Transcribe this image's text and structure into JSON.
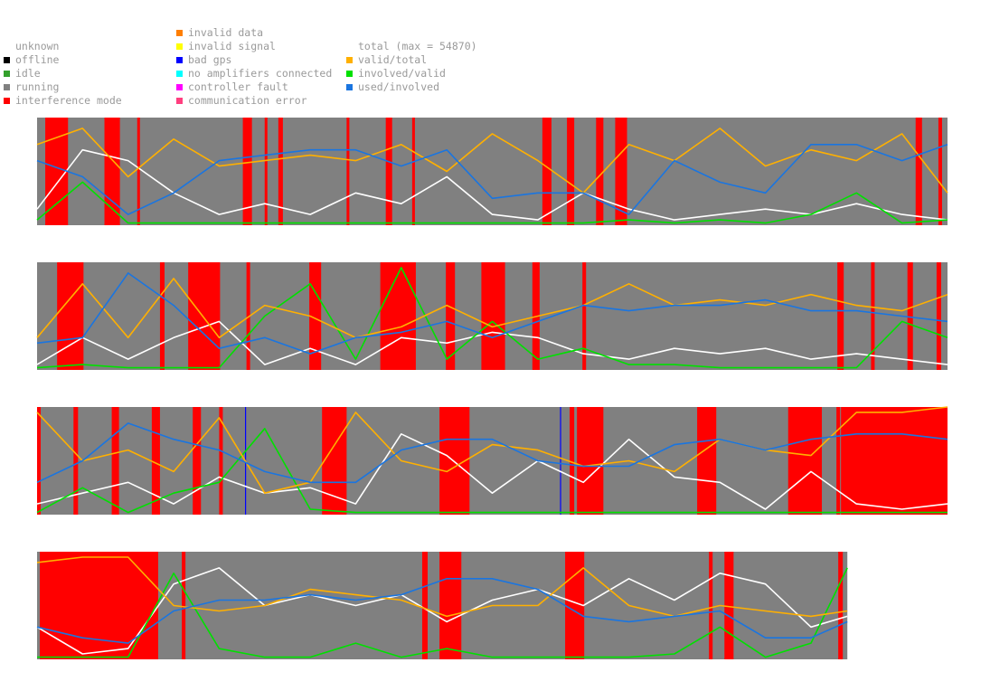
{
  "legend": {
    "status": [
      {
        "name": "unknown",
        "color": "#ffffff"
      },
      {
        "name": "offline",
        "color": "#000000"
      },
      {
        "name": "idle",
        "color": "#33a02c"
      },
      {
        "name": "running",
        "color": "#808080"
      },
      {
        "name": "interference mode",
        "color": "#ff0000"
      }
    ],
    "flags": [
      {
        "name": "invalid data",
        "color": "#ff7f00"
      },
      {
        "name": "invalid signal",
        "color": "#ffff00"
      },
      {
        "name": "bad gps",
        "color": "#0000ff"
      },
      {
        "name": "no amplifiers connected",
        "color": "#00ffff"
      },
      {
        "name": "controller fault",
        "color": "#ff00ff"
      },
      {
        "name": "communication error",
        "color": "#ff3f7f"
      }
    ],
    "series": [
      {
        "name": "total (max = 54870)",
        "color": "#ffffff"
      },
      {
        "name": "valid/total",
        "color": "#ffb000"
      },
      {
        "name": "involved/valid",
        "color": "#00e000"
      },
      {
        "name": "used/involved",
        "color": "#1a75e0"
      }
    ]
  },
  "chart_data": [
    {
      "type": "line",
      "xlim": [
        0,
        100
      ],
      "ylim": [
        0,
        1
      ],
      "x": [
        0,
        5,
        10,
        15,
        20,
        25,
        30,
        35,
        40,
        45,
        50,
        55,
        60,
        65,
        70,
        75,
        80,
        85,
        90,
        95,
        100
      ],
      "interference": [
        [
          0.9,
          3.4
        ],
        [
          7.4,
          9.1
        ],
        [
          11,
          11.3
        ],
        [
          22.6,
          23.6
        ],
        [
          25,
          25.3
        ],
        [
          26.5,
          27
        ],
        [
          34,
          34.3
        ],
        [
          38.3,
          39
        ],
        [
          41.2,
          41.5
        ],
        [
          55.5,
          56.5
        ],
        [
          58.2,
          59
        ],
        [
          61.4,
          62.2
        ],
        [
          63.5,
          64.8
        ],
        [
          96.5,
          97.2
        ],
        [
          99,
          99.4
        ]
      ],
      "bad_gps": [],
      "series": [
        {
          "color": "#ffffff",
          "values": [
            0.15,
            0.7,
            0.6,
            0.3,
            0.1,
            0.2,
            0.1,
            0.3,
            0.2,
            0.45,
            0.1,
            0.05,
            0.3,
            0.15,
            0.05,
            0.1,
            0.15,
            0.1,
            0.2,
            0.1,
            0.05
          ]
        },
        {
          "color": "#00e000",
          "values": [
            0.05,
            0.4,
            0.02,
            0.02,
            0.02,
            0.02,
            0.02,
            0.02,
            0.02,
            0.02,
            0.02,
            0.02,
            0.02,
            0.05,
            0.02,
            0.05,
            0.02,
            0.1,
            0.3,
            0.02,
            0.05
          ]
        },
        {
          "color": "#ffb000",
          "values": [
            0.75,
            0.9,
            0.45,
            0.8,
            0.55,
            0.6,
            0.65,
            0.6,
            0.75,
            0.5,
            0.85,
            0.6,
            0.3,
            0.75,
            0.6,
            0.9,
            0.55,
            0.7,
            0.6,
            0.85,
            0.3
          ]
        },
        {
          "color": "#1a75e0",
          "values": [
            0.6,
            0.45,
            0.1,
            0.3,
            0.6,
            0.65,
            0.7,
            0.7,
            0.55,
            0.7,
            0.25,
            0.3,
            0.3,
            0.1,
            0.6,
            0.4,
            0.3,
            0.75,
            0.75,
            0.6,
            0.75
          ]
        }
      ]
    },
    {
      "type": "line",
      "xlim": [
        0,
        100
      ],
      "ylim": [
        0,
        1
      ],
      "x": [
        0,
        5,
        10,
        15,
        20,
        25,
        30,
        35,
        40,
        45,
        50,
        55,
        60,
        65,
        70,
        75,
        80,
        85,
        90,
        95,
        100
      ],
      "interference": [
        [
          2.2,
          5.1
        ],
        [
          13.5,
          14
        ],
        [
          16.6,
          20.1
        ],
        [
          23,
          23.4
        ],
        [
          29.9,
          31.2
        ],
        [
          37.7,
          41.6
        ],
        [
          44.9,
          45.9
        ],
        [
          48.8,
          51.4
        ],
        [
          54.4,
          55.2
        ],
        [
          59.9,
          60.3
        ],
        [
          87.9,
          88.6
        ],
        [
          91.6,
          92
        ],
        [
          95.6,
          96.2
        ],
        [
          98.8,
          99.3
        ]
      ],
      "bad_gps": [],
      "series": [
        {
          "color": "#ffffff",
          "values": [
            0.05,
            0.3,
            0.1,
            0.3,
            0.45,
            0.05,
            0.2,
            0.05,
            0.3,
            0.25,
            0.35,
            0.3,
            0.15,
            0.1,
            0.2,
            0.15,
            0.2,
            0.1,
            0.15,
            0.1,
            0.05
          ]
        },
        {
          "color": "#00e000",
          "values": [
            0.02,
            0.05,
            0.02,
            0.02,
            0.02,
            0.5,
            0.8,
            0.1,
            0.95,
            0.1,
            0.45,
            0.1,
            0.2,
            0.05,
            0.05,
            0.02,
            0.02,
            0.02,
            0.02,
            0.45,
            0.3
          ]
        },
        {
          "color": "#ffb000",
          "values": [
            0.3,
            0.8,
            0.3,
            0.85,
            0.3,
            0.6,
            0.5,
            0.3,
            0.4,
            0.6,
            0.4,
            0.5,
            0.6,
            0.8,
            0.6,
            0.65,
            0.6,
            0.7,
            0.6,
            0.55,
            0.7
          ]
        },
        {
          "color": "#1a75e0",
          "values": [
            0.25,
            0.3,
            0.9,
            0.6,
            0.2,
            0.3,
            0.15,
            0.3,
            0.35,
            0.45,
            0.3,
            0.45,
            0.6,
            0.55,
            0.6,
            0.6,
            0.65,
            0.55,
            0.55,
            0.5,
            0.45
          ]
        }
      ]
    },
    {
      "type": "line",
      "xlim": [
        0,
        100
      ],
      "ylim": [
        0,
        1
      ],
      "x": [
        0,
        5,
        10,
        15,
        20,
        25,
        30,
        35,
        40,
        45,
        50,
        55,
        60,
        65,
        70,
        75,
        80,
        85,
        90,
        95,
        100
      ],
      "interference": [
        [
          0,
          0.4
        ],
        [
          4,
          4.5
        ],
        [
          8.2,
          9
        ],
        [
          12.6,
          13.5
        ],
        [
          17.1,
          18
        ],
        [
          20,
          20.4
        ],
        [
          31.3,
          34
        ],
        [
          44.2,
          47.5
        ],
        [
          58.5,
          59
        ],
        [
          59.3,
          62.2
        ],
        [
          72.5,
          74.6
        ],
        [
          82.5,
          86.2
        ],
        [
          87.8,
          88.2
        ],
        [
          88.3,
          100
        ]
      ],
      "bad_gps": [
        22.9,
        57.5
      ],
      "series": [
        {
          "color": "#ffffff",
          "values": [
            0.1,
            0.2,
            0.3,
            0.1,
            0.35,
            0.2,
            0.25,
            0.1,
            0.75,
            0.55,
            0.2,
            0.5,
            0.3,
            0.7,
            0.35,
            0.3,
            0.05,
            0.4,
            0.1,
            0.05,
            0.1
          ]
        },
        {
          "color": "#00e000",
          "values": [
            0.02,
            0.25,
            0.02,
            0.2,
            0.3,
            0.8,
            0.05,
            0.02,
            0.02,
            0.02,
            0.02,
            0.02,
            0.02,
            0.02,
            0.02,
            0.02,
            0.02,
            0.02,
            0.02,
            0.02,
            0.02
          ]
        },
        {
          "color": "#ffb000",
          "values": [
            0.95,
            0.5,
            0.6,
            0.4,
            0.9,
            0.2,
            0.3,
            0.95,
            0.5,
            0.4,
            0.65,
            0.6,
            0.45,
            0.5,
            0.4,
            0.7,
            0.6,
            0.55,
            0.95,
            0.95,
            1.0
          ]
        },
        {
          "color": "#1a75e0",
          "values": [
            0.3,
            0.5,
            0.85,
            0.7,
            0.6,
            0.4,
            0.3,
            0.3,
            0.6,
            0.7,
            0.7,
            0.5,
            0.45,
            0.45,
            0.65,
            0.7,
            0.6,
            0.7,
            0.75,
            0.75,
            0.7
          ]
        }
      ]
    },
    {
      "type": "line",
      "xlim": [
        0,
        89
      ],
      "ylim": [
        0,
        1
      ],
      "x": [
        0,
        5,
        10,
        15,
        20,
        25,
        30,
        35,
        40,
        45,
        50,
        55,
        60,
        65,
        70,
        75,
        80,
        85,
        89
      ],
      "interference": [
        [
          0.3,
          13.3
        ],
        [
          15.9,
          16.3
        ],
        [
          42.3,
          42.9
        ],
        [
          44.2,
          46.6
        ],
        [
          58,
          60.1
        ],
        [
          73.8,
          74.2
        ],
        [
          75.5,
          76.5
        ],
        [
          88,
          88.5
        ]
      ],
      "bad_gps": [],
      "series": [
        {
          "color": "#ffffff",
          "values": [
            0.3,
            0.05,
            0.1,
            0.7,
            0.85,
            0.5,
            0.6,
            0.5,
            0.6,
            0.35,
            0.55,
            0.65,
            0.5,
            0.75,
            0.55,
            0.8,
            0.7,
            0.3,
            0.4
          ]
        },
        {
          "color": "#00e000",
          "values": [
            0.02,
            0.02,
            0.02,
            0.8,
            0.1,
            0.02,
            0.02,
            0.15,
            0.02,
            0.1,
            0.02,
            0.02,
            0.02,
            0.02,
            0.05,
            0.3,
            0.02,
            0.15,
            0.85
          ]
        },
        {
          "color": "#ffb000",
          "values": [
            0.9,
            0.95,
            0.95,
            0.5,
            0.45,
            0.5,
            0.65,
            0.6,
            0.55,
            0.4,
            0.5,
            0.5,
            0.85,
            0.5,
            0.4,
            0.5,
            0.45,
            0.4,
            0.45
          ]
        },
        {
          "color": "#1a75e0",
          "values": [
            0.3,
            0.2,
            0.15,
            0.45,
            0.55,
            0.55,
            0.6,
            0.55,
            0.6,
            0.75,
            0.75,
            0.65,
            0.4,
            0.35,
            0.4,
            0.45,
            0.2,
            0.2,
            0.35
          ]
        }
      ]
    }
  ]
}
